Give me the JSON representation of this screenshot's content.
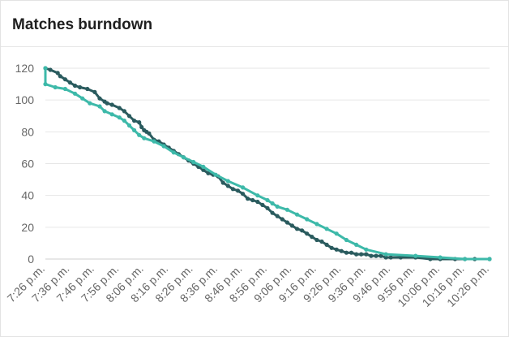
{
  "card": {
    "title": "Matches burndown"
  },
  "chart_data": {
    "type": "line",
    "title": "Matches burndown",
    "xlabel": "",
    "ylabel": "",
    "ylim": [
      0,
      120
    ],
    "yticks": [
      0,
      20,
      40,
      60,
      80,
      100,
      120
    ],
    "xlim": [
      "7:26 p.m.",
      "10:26 p.m."
    ],
    "xticks": [
      "7:26 p.m.",
      "7:36 p.m.",
      "7:46 p.m.",
      "7:56 p.m.",
      "8:06 p.m.",
      "8:16 p.m.",
      "8:26 p.m.",
      "8:36 p.m.",
      "8:46 p.m.",
      "8:56 p.m.",
      "9:06 p.m.",
      "9:16 p.m.",
      "9:26 p.m.",
      "9:36 p.m.",
      "9:46 p.m.",
      "9:56 p.m.",
      "10:06 p.m.",
      "10:16 p.m.",
      "10:26 p.m."
    ],
    "grid": true,
    "legend": "none",
    "series": [
      {
        "color": "#2a5b5e",
        "x": [
          "7:26 p.m.",
          "7:28 p.m.",
          "7:31 p.m.",
          "7:32 p.m.",
          "7:34 p.m.",
          "7:36 p.m.",
          "7:38 p.m.",
          "7:40 p.m.",
          "7:43 p.m.",
          "7:46 p.m.",
          "7:48 p.m.",
          "7:50 p.m.",
          "7:51 p.m.",
          "7:53 p.m.",
          "7:56 p.m.",
          "7:58 p.m.",
          "8:00 p.m.",
          "8:02 p.m.",
          "8:04 p.m.",
          "8:05 p.m.",
          "8:06 p.m.",
          "8:07 p.m.",
          "8:08 p.m.",
          "8:10 p.m.",
          "8:12 p.m.",
          "8:14 p.m.",
          "8:16 p.m.",
          "8:18 p.m.",
          "8:20 p.m.",
          "8:22 p.m.",
          "8:24 p.m.",
          "8:26 p.m.",
          "8:28 p.m.",
          "8:30 p.m.",
          "8:32 p.m.",
          "8:34 p.m.",
          "8:36 p.m.",
          "8:38 p.m.",
          "8:40 p.m.",
          "8:42 p.m.",
          "8:44 p.m.",
          "8:46 p.m.",
          "8:48 p.m.",
          "8:50 p.m.",
          "8:52 p.m.",
          "8:54 p.m.",
          "8:56 p.m.",
          "8:58 p.m.",
          "9:00 p.m.",
          "9:02 p.m.",
          "9:04 p.m.",
          "9:06 p.m.",
          "9:08 p.m.",
          "9:10 p.m.",
          "9:12 p.m.",
          "9:14 p.m.",
          "9:16 p.m.",
          "9:18 p.m.",
          "9:20 p.m.",
          "9:22 p.m.",
          "9:24 p.m.",
          "9:26 p.m.",
          "9:28 p.m.",
          "9:30 p.m.",
          "9:32 p.m.",
          "9:34 p.m.",
          "9:36 p.m.",
          "9:38 p.m.",
          "9:40 p.m.",
          "9:42 p.m.",
          "9:44 p.m.",
          "9:46 p.m.",
          "9:50 p.m.",
          "9:56 p.m.",
          "10:02 p.m.",
          "10:06 p.m.",
          "10:12 p.m.",
          "10:16 p.m.",
          "10:20 p.m.",
          "10:26 p.m."
        ],
        "y": [
          120,
          119,
          117,
          115,
          113,
          111,
          109,
          108,
          107,
          105,
          101,
          99,
          98,
          97,
          95,
          93,
          90,
          87,
          86,
          83,
          81,
          80,
          79,
          75,
          74,
          72,
          70,
          68,
          66,
          64,
          62,
          60,
          58,
          56,
          54,
          53,
          52,
          48,
          46,
          44,
          43,
          41,
          38,
          37,
          36,
          34,
          32,
          29,
          27,
          25,
          23,
          21,
          19,
          18,
          16,
          14,
          12,
          11,
          9,
          7,
          6,
          5,
          4,
          4,
          3,
          3,
          3,
          2,
          2,
          2,
          1,
          1,
          1,
          1,
          0,
          0,
          0,
          0,
          0,
          0
        ]
      },
      {
        "color": "#3db9a9",
        "x": [
          "7:26 p.m.",
          "7:26 p.m.",
          "7:30 p.m.",
          "7:34 p.m.",
          "7:38 p.m.",
          "7:41 p.m.",
          "7:44 p.m.",
          "7:48 p.m.",
          "7:50 p.m.",
          "7:53 p.m.",
          "7:56 p.m.",
          "7:58 p.m.",
          "8:00 p.m.",
          "8:02 p.m.",
          "8:04 p.m.",
          "8:06 p.m.",
          "8:10 p.m.",
          "8:14 p.m.",
          "8:18 p.m.",
          "8:22 p.m.",
          "8:26 p.m.",
          "8:30 p.m.",
          "8:35 p.m.",
          "8:40 p.m.",
          "8:46 p.m.",
          "8:52 p.m.",
          "8:56 p.m.",
          "8:58 p.m.",
          "9:00 p.m.",
          "9:04 p.m.",
          "9:08 p.m.",
          "9:12 p.m.",
          "9:16 p.m.",
          "9:20 p.m.",
          "9:24 p.m.",
          "9:28 p.m.",
          "9:32 p.m.",
          "9:36 p.m.",
          "9:44 p.m.",
          "9:56 p.m.",
          "10:06 p.m.",
          "10:16 p.m.",
          "10:26 p.m."
        ],
        "y": [
          120,
          110,
          108,
          107,
          104,
          101,
          98,
          96,
          93,
          91,
          89,
          87,
          84,
          81,
          78,
          76,
          74,
          71,
          67,
          64,
          61,
          58,
          53,
          49,
          45,
          40,
          37,
          35,
          33,
          31,
          28,
          25,
          22,
          19,
          16,
          12,
          9,
          6,
          3,
          2,
          1,
          0,
          0
        ]
      }
    ]
  }
}
